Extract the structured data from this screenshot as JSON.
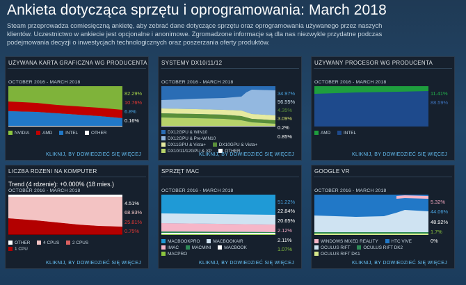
{
  "page": {
    "title": "Ankieta dotycząca sprzętu i oprogramowania: March 2018",
    "intro": "Steam przeprowadza comiesięczną ankietę, aby zebrać dane dotyczące sprzętu oraz oprogramowania używanego przez naszych klientów. Uczestnictwo w ankiecie jest opcjonalne i anonimowe. Zgromadzone informacje są dla nas niezwykle przydatne podczas podejmowania decyzji o inwestycjach technologicznych oraz poszerzania oferty produktów."
  },
  "more_label": "KLIKNIJ, BY DOWIEDZIEĆ SIĘ WIĘCEJ",
  "colors": {
    "link": "#66c0f4",
    "panel_bg": "#16202d",
    "green": "#8cc63f",
    "red": "#c00000",
    "blue": "#2178c7",
    "steel": "#1e4a8c"
  },
  "panels": [
    {
      "id": "gpu",
      "title": "UŻYWANA KARTA GRAFICZNA WG PRODUCENTA",
      "subtitle": "OCTOBER 2016 - MARCH 2018",
      "values": [
        {
          "text": "82.29%",
          "color": "#a3d149"
        },
        {
          "text": "10.76%",
          "color": "#e53935"
        },
        {
          "text": "6.8%",
          "color": "#4aa3e0"
        },
        {
          "text": "0.16%",
          "color": "#ffffff"
        }
      ],
      "legend": [
        {
          "label": "NVIDIA",
          "color": "#8cc63f"
        },
        {
          "label": "AMD",
          "color": "#c00000"
        },
        {
          "label": "INTEL",
          "color": "#2178c7"
        },
        {
          "label": "OTHER",
          "color": "#ffffff"
        }
      ]
    },
    {
      "id": "directx",
      "title": "SYSTEMY DX10/11/12",
      "subtitle": "OCTOBER 2016 - MARCH 2018",
      "values": [
        {
          "text": "34.97%",
          "color": "#4aa3e0"
        },
        {
          "text": "56.55%",
          "color": "#cfe3f2"
        },
        {
          "text": "4.35%",
          "color": "#5a8f3a"
        },
        {
          "text": "3.09%",
          "color": "#d0dd6b"
        },
        {
          "text": "0.2%",
          "color": "#ffffff"
        },
        {
          "text": "0.85%",
          "color": "#ffffff"
        }
      ],
      "legend": [
        {
          "label": "DX12GPU & WIN10",
          "color": "#2a6db5"
        },
        {
          "label": "DX12GPU & Pre-WIN10",
          "color": "#93b8e0"
        },
        {
          "label": "DX11GPU & Vista+",
          "color": "#e6eaa0"
        },
        {
          "label": "DX10GPU & Vista+",
          "color": "#5a8f3a"
        },
        {
          "label": "DX10/11/12GPU & XP",
          "color": "#b7d36a"
        },
        {
          "label": "OTHER",
          "color": "#ffffff"
        }
      ]
    },
    {
      "id": "cpu",
      "title": "UŻYWANY PROCESOR WG PRODUCENTA",
      "subtitle": "OCTOBER 2016 - MARCH 2018",
      "values": [
        {
          "text": "11.41%",
          "color": "#22b14c"
        },
        {
          "text": "88.59%",
          "color": "#3d6fb5"
        }
      ],
      "legend": [
        {
          "label": "AMD",
          "color": "#1e9e3e"
        },
        {
          "label": "INTEL",
          "color": "#1e4a8c"
        }
      ]
    },
    {
      "id": "cores",
      "title": "LICZBA RDZENI NA KOMPUTER",
      "trend": "Trend (4 rdzenie): +0.000% (18 mies.)",
      "subtitle": "OCTOBER 2016 - MARCH 2018",
      "values": [
        {
          "text": "4.51%",
          "color": "#ffffff"
        },
        {
          "text": "68.93%",
          "color": "#f2c7c7"
        },
        {
          "text": "25.81%",
          "color": "#e53935"
        },
        {
          "text": "0.75%",
          "color": "#e53935"
        }
      ],
      "legend": [
        {
          "label": "OTHER",
          "color": "#ffffff"
        },
        {
          "label": "4 CPUS",
          "color": "#f3c3c3"
        },
        {
          "label": "2 CPUS",
          "color": "#d96060"
        },
        {
          "label": "1 CPU",
          "color": "#b30000"
        }
      ]
    },
    {
      "id": "mac",
      "title": "SPRZĘT MAC",
      "subtitle": "OCTOBER 2016 - MARCH 2018",
      "values": [
        {
          "text": "51.22%",
          "color": "#4aa3e0"
        },
        {
          "text": "22.84%",
          "color": "#ffffff"
        },
        {
          "text": "20.65%",
          "color": "#ffffff"
        },
        {
          "text": "2.12%",
          "color": "#f2a7c0"
        },
        {
          "text": "2.11%",
          "color": "#ffffff"
        },
        {
          "text": "1.07%",
          "color": "#8cc63f"
        }
      ],
      "legend": [
        {
          "label": "MACBOOKPRO",
          "color": "#1f9ad6"
        },
        {
          "label": "MACBOOKAIR",
          "color": "#cfe3f2"
        },
        {
          "label": "IMAC",
          "color": "#f6b6c8"
        },
        {
          "label": "MACMINI",
          "color": "#2e8b57"
        },
        {
          "label": "MACBOOK",
          "color": "#ffffff"
        },
        {
          "label": "MACPRO",
          "color": "#8cc63f"
        }
      ]
    },
    {
      "id": "vr",
      "title": "GOOGLE VR",
      "subtitle": "OCTOBER 2016 - MARCH 2018",
      "values": [
        {
          "text": "5.32%",
          "color": "#f2a7c0"
        },
        {
          "text": "44.06%",
          "color": "#4aa3e0"
        },
        {
          "text": "48.92%",
          "color": "#ffffff"
        },
        {
          "text": "1.7%",
          "color": "#8cc63f"
        },
        {
          "text": "0%",
          "color": "#ffffff"
        }
      ],
      "legend": [
        {
          "label": "WINDOWS MIXED REALITY",
          "color": "#f6b6c8"
        },
        {
          "label": "HTC VIVE",
          "color": "#2178c7"
        },
        {
          "label": "OCULUS RIFT",
          "color": "#cfe3f2"
        },
        {
          "label": "OCULUS RIFT DK2",
          "color": "#2e8b57"
        },
        {
          "label": "OCULUS RIFT DK1",
          "color": "#d6e88a"
        }
      ]
    }
  ]
}
